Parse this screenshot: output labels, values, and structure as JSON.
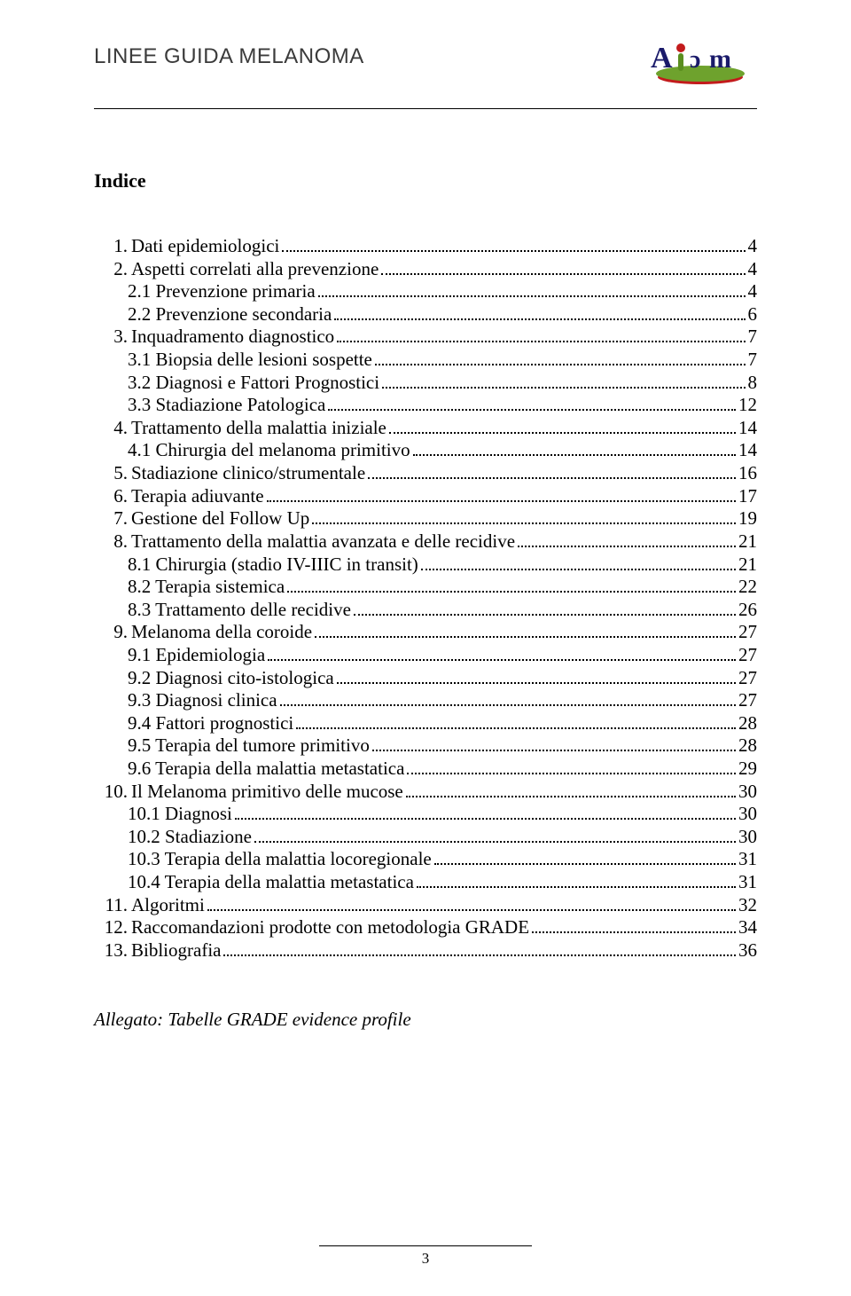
{
  "header": {
    "title": "LINEE GUIDA MELANOMA",
    "logo_color1": "#c31b1c",
    "logo_color2": "#6ea22d",
    "logo_text_color": "#1a1a6a"
  },
  "index_title": "Indice",
  "toc": [
    {
      "num": "1.",
      "label": "Dati epidemiologici",
      "page": "4",
      "level": 0
    },
    {
      "num": "2.",
      "label": "Aspetti correlati alla prevenzione",
      "page": "4",
      "level": 0
    },
    {
      "num": "",
      "label": "2.1 Prevenzione primaria",
      "page": "4",
      "level": 1
    },
    {
      "num": "",
      "label": "2.2 Prevenzione secondaria",
      "page": "6",
      "level": 1
    },
    {
      "num": "3.",
      "label": "Inquadramento diagnostico",
      "page": "7",
      "level": 0
    },
    {
      "num": "",
      "label": "3.1 Biopsia delle lesioni sospette",
      "page": "7",
      "level": 1
    },
    {
      "num": "",
      "label": "3.2 Diagnosi e Fattori Prognostici",
      "page": "8",
      "level": 1
    },
    {
      "num": "",
      "label": "3.3 Stadiazione Patologica",
      "page": "12",
      "level": 1
    },
    {
      "num": "4.",
      "label": "Trattamento della malattia iniziale",
      "page": "14",
      "level": 0
    },
    {
      "num": "",
      "label": "4.1 Chirurgia del melanoma primitivo",
      "page": "14",
      "level": 1
    },
    {
      "num": "5.",
      "label": "Stadiazione clinico/strumentale",
      "page": "16",
      "level": 0
    },
    {
      "num": "6.",
      "label": "Terapia adiuvante",
      "page": "17",
      "level": 0
    },
    {
      "num": "7.",
      "label": "Gestione del Follow Up",
      "page": "19",
      "level": 0
    },
    {
      "num": "8.",
      "label": "Trattamento della malattia avanzata e delle recidive",
      "page": "21",
      "level": 0
    },
    {
      "num": "",
      "label": "8.1 Chirurgia (stadio IV-IIIC in transit)",
      "page": "21",
      "level": 1
    },
    {
      "num": "",
      "label": "8.2 Terapia sistemica",
      "page": "22",
      "level": 1
    },
    {
      "num": "",
      "label": "8.3 Trattamento delle recidive",
      "page": "26",
      "level": 1
    },
    {
      "num": "9.",
      "label": "Melanoma della coroide",
      "page": "27",
      "level": 0
    },
    {
      "num": "",
      "label": "9.1 Epidemiologia",
      "page": "27",
      "level": 1
    },
    {
      "num": "",
      "label": "9.2 Diagnosi cito-istologica",
      "page": "27",
      "level": 1
    },
    {
      "num": "",
      "label": "9.3 Diagnosi clinica",
      "page": "27",
      "level": 1
    },
    {
      "num": "",
      "label": "9.4 Fattori prognostici",
      "page": "28",
      "level": 1
    },
    {
      "num": "",
      "label": "9.5 Terapia del tumore primitivo",
      "page": "28",
      "level": 1
    },
    {
      "num": "",
      "label": "9.6 Terapia della malattia metastatica",
      "page": "29",
      "level": 1
    },
    {
      "num": "10.",
      "label": "Il Melanoma primitivo delle mucose",
      "page": "30",
      "level": 0
    },
    {
      "num": "",
      "label": "10.1 Diagnosi",
      "page": "30",
      "level": 1
    },
    {
      "num": "",
      "label": "10.2 Stadiazione",
      "page": "30",
      "level": 1
    },
    {
      "num": "",
      "label": "10.3 Terapia della malattia locoregionale",
      "page": "31",
      "level": 1
    },
    {
      "num": "",
      "label": "10.4 Terapia della malattia metastatica",
      "page": "31",
      "level": 1
    },
    {
      "num": "11.",
      "label": "Algoritmi",
      "page": "32",
      "level": 0
    },
    {
      "num": "12.",
      "label": "Raccomandazioni prodotte con metodologia GRADE",
      "page": "34",
      "level": 0
    },
    {
      "num": "13.",
      "label": "Bibliografia",
      "page": "36",
      "level": 0
    }
  ],
  "appendix": "Allegato: Tabelle GRADE evidence profile",
  "page_number": "3"
}
